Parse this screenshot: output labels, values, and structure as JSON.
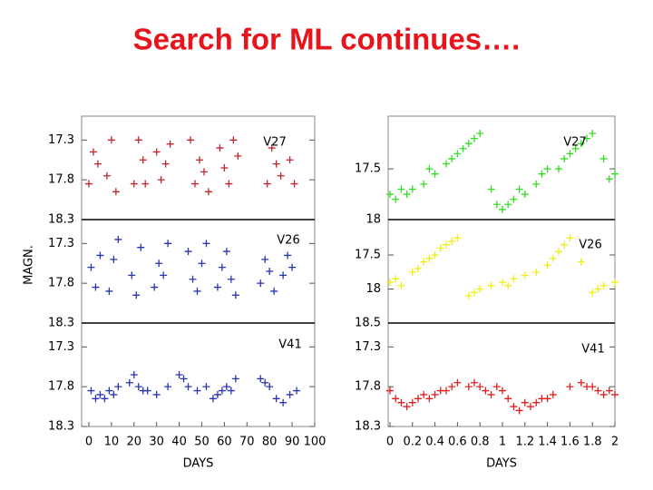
{
  "title": "Search for ML continues….",
  "chart_data": [
    {
      "type": "scatter",
      "label": "V27",
      "color": "#c0262a",
      "xlim": [
        -3.2,
        100
      ],
      "ylim": [
        18.3,
        17.0
      ],
      "yticks": [
        17.3,
        17.8,
        18.3
      ],
      "x": [
        0,
        2,
        4,
        8,
        10,
        12,
        20,
        22,
        24,
        25,
        30,
        32,
        34,
        36,
        45,
        47,
        49,
        51,
        53,
        58,
        60,
        62,
        64,
        66,
        79,
        81,
        83,
        85,
        89,
        91
      ],
      "values": [
        17.85,
        17.45,
        17.6,
        17.75,
        17.3,
        17.95,
        17.85,
        17.3,
        17.55,
        17.85,
        17.45,
        17.8,
        17.6,
        17.35,
        17.3,
        17.85,
        17.55,
        17.7,
        17.95,
        17.4,
        17.65,
        17.85,
        17.3,
        17.5,
        17.85,
        17.4,
        17.6,
        17.75,
        17.55,
        17.85
      ]
    },
    {
      "type": "scatter",
      "label": "V26",
      "ylabel": "MAGN.",
      "color": "#2a33b0",
      "xlim": [
        -3.2,
        100
      ],
      "ylim": [
        18.3,
        17.0
      ],
      "yticks": [
        17.3,
        17.8,
        18.3
      ],
      "x": [
        1,
        3,
        5,
        9,
        11,
        13,
        19,
        21,
        23,
        29,
        31,
        33,
        35,
        44,
        46,
        48,
        50,
        52,
        57,
        59,
        61,
        63,
        65,
        76,
        78,
        80,
        82,
        86,
        88,
        90
      ],
      "values": [
        17.6,
        17.85,
        17.45,
        17.9,
        17.5,
        17.25,
        17.7,
        17.95,
        17.35,
        17.85,
        17.55,
        17.7,
        17.3,
        17.4,
        17.75,
        17.9,
        17.55,
        17.3,
        17.85,
        17.6,
        17.4,
        17.75,
        17.95,
        17.8,
        17.5,
        17.65,
        17.9,
        17.7,
        17.45,
        17.6
      ]
    },
    {
      "type": "scatter",
      "label": "V41",
      "xlabel": "DAYS",
      "color": "#2a33b0",
      "xlim": [
        -3.2,
        100
      ],
      "ylim": [
        18.3,
        17.0
      ],
      "yticks": [
        17.3,
        17.8,
        18.3
      ],
      "xticks": [
        0,
        10,
        20,
        30,
        40,
        50,
        60,
        70,
        80,
        90,
        100
      ],
      "x": [
        1,
        3,
        5,
        7,
        9,
        11,
        13,
        18,
        20,
        22,
        24,
        26,
        30,
        35,
        40,
        42,
        44,
        48,
        52,
        55,
        57,
        59,
        61,
        63,
        65,
        76,
        78,
        80,
        83,
        86,
        89,
        92
      ],
      "values": [
        17.85,
        17.95,
        17.9,
        17.95,
        17.85,
        17.9,
        17.8,
        17.75,
        17.65,
        17.8,
        17.85,
        17.85,
        17.9,
        17.8,
        17.65,
        17.7,
        17.8,
        17.85,
        17.8,
        17.95,
        17.9,
        17.85,
        17.8,
        17.85,
        17.7,
        17.7,
        17.75,
        17.8,
        17.95,
        18.0,
        17.9,
        17.85
      ]
    },
    {
      "type": "scatter",
      "label": "V27",
      "color": "#33dd22",
      "xlim": [
        -0.016,
        2
      ],
      "ylim": [
        18,
        16.98
      ],
      "yticks": [
        17.5,
        18
      ],
      "x": [
        0,
        0.05,
        0.1,
        0.15,
        0.2,
        0.3,
        0.35,
        0.4,
        0.5,
        0.55,
        0.6,
        0.65,
        0.7,
        0.75,
        0.8,
        0.9,
        0.95,
        1.0,
        1.05,
        1.1,
        1.15,
        1.2,
        1.3,
        1.35,
        1.4,
        1.5,
        1.55,
        1.6,
        1.65,
        1.7,
        1.75,
        1.8,
        1.9,
        1.95,
        2.0
      ],
      "values": [
        17.75,
        17.8,
        17.7,
        17.75,
        17.7,
        17.65,
        17.5,
        17.55,
        17.45,
        17.4,
        17.35,
        17.3,
        17.25,
        17.2,
        17.15,
        17.7,
        17.85,
        17.9,
        17.85,
        17.8,
        17.7,
        17.75,
        17.65,
        17.55,
        17.5,
        17.5,
        17.4,
        17.35,
        17.3,
        17.25,
        17.2,
        17.15,
        17.4,
        17.6,
        17.55
      ]
    },
    {
      "type": "scatter",
      "label": "V26",
      "color": "#f0ee10",
      "xlim": [
        -0.016,
        2
      ],
      "ylim": [
        18.5,
        16.98
      ],
      "yticks": [
        17.5,
        18,
        18.5
      ],
      "x": [
        0,
        0.05,
        0.1,
        0.2,
        0.25,
        0.3,
        0.35,
        0.4,
        0.45,
        0.5,
        0.55,
        0.6,
        0.7,
        0.75,
        0.8,
        0.9,
        1.0,
        1.05,
        1.1,
        1.2,
        1.3,
        1.4,
        1.45,
        1.5,
        1.55,
        1.6,
        1.7,
        1.8,
        1.85,
        1.9,
        2.0
      ],
      "values": [
        17.9,
        17.85,
        17.95,
        17.75,
        17.7,
        17.6,
        17.55,
        17.5,
        17.4,
        17.35,
        17.3,
        17.25,
        18.1,
        18.05,
        18.0,
        17.95,
        17.9,
        17.95,
        17.85,
        17.8,
        17.75,
        17.65,
        17.55,
        17.45,
        17.35,
        17.25,
        17.6,
        18.05,
        18.0,
        17.95,
        17.9
      ]
    },
    {
      "type": "scatter",
      "label": "V41",
      "xlabel": "DAYS",
      "color": "#e02020",
      "xlim": [
        -0.016,
        2
      ],
      "ylim": [
        18.3,
        17.0
      ],
      "yticks": [
        17.3,
        17.8,
        18.3
      ],
      "xticks": [
        0,
        0.2,
        0.4,
        0.6,
        0.8,
        1,
        1.2,
        1.4,
        1.6,
        1.8,
        2
      ],
      "x": [
        0,
        0.05,
        0.1,
        0.15,
        0.2,
        0.25,
        0.3,
        0.35,
        0.4,
        0.45,
        0.5,
        0.55,
        0.6,
        0.7,
        0.75,
        0.8,
        0.85,
        0.9,
        0.95,
        1.0,
        1.05,
        1.1,
        1.15,
        1.2,
        1.25,
        1.3,
        1.35,
        1.4,
        1.45,
        1.6,
        1.7,
        1.75,
        1.8,
        1.85,
        1.9,
        1.95,
        2.0
      ],
      "values": [
        17.85,
        17.95,
        18.0,
        18.05,
        18.0,
        17.95,
        17.9,
        17.95,
        17.9,
        17.85,
        17.85,
        17.8,
        17.75,
        17.8,
        17.75,
        17.8,
        17.85,
        17.9,
        17.8,
        17.85,
        17.95,
        18.05,
        18.1,
        18.0,
        18.05,
        18.0,
        17.95,
        17.95,
        17.9,
        17.8,
        17.75,
        17.8,
        17.8,
        17.85,
        17.9,
        17.85,
        17.9
      ]
    }
  ]
}
